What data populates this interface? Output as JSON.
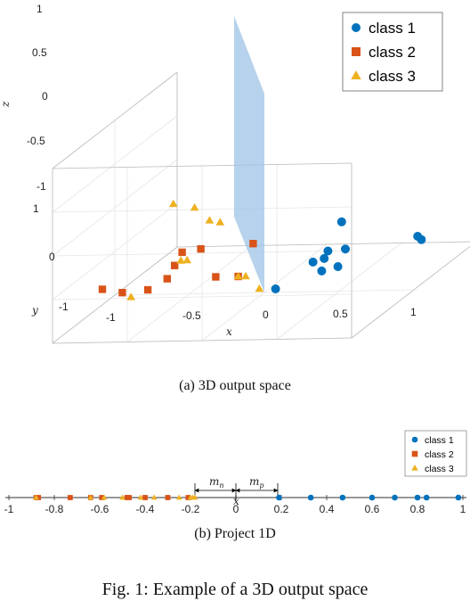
{
  "chart_data": [
    {
      "type": "scatter",
      "subtype": "3d",
      "xlabel": "x",
      "ylabel": "y",
      "zlabel": "z",
      "xticks": [
        "-1",
        "-0.5",
        "0",
        "0.5",
        "1"
      ],
      "yticks": [
        "-1",
        "0",
        "1"
      ],
      "zticks": [
        "-1",
        "-0.5",
        "0",
        "0.5",
        "1"
      ],
      "xlim": [
        -1,
        1
      ],
      "ylim": [
        -1,
        1
      ],
      "zlim": [
        -1,
        1
      ],
      "legend_position": "top-right",
      "series": [
        {
          "name": "class 1",
          "marker": "circle",
          "color": "#0072BD",
          "points": [
            [
              0.2,
              0.3,
              -0.8
            ],
            [
              0.45,
              0.3,
              -0.5
            ],
            [
              0.55,
              0.4,
              -0.55
            ],
            [
              0.7,
              0.5,
              -0.45
            ],
            [
              0.6,
              0.2,
              -0.1
            ],
            [
              0.75,
              0.5,
              -0.25
            ],
            [
              0.3,
              -0.3,
              -0.7
            ],
            [
              0.9,
              -0.3,
              -0.55
            ],
            [
              0.8,
              -0.6,
              -0.75
            ],
            [
              0.65,
              0.6,
              -0.3
            ]
          ]
        },
        {
          "name": "class 2",
          "marker": "square",
          "color": "#D95319",
          "points": [
            [
              -0.75,
              0.8,
              -0.5
            ],
            [
              -0.7,
              0.6,
              -0.65
            ],
            [
              -0.55,
              0.55,
              -0.65
            ],
            [
              -0.35,
              0.6,
              -0.35
            ],
            [
              -0.4,
              0.6,
              -0.5
            ],
            [
              -0.2,
              0.3,
              -0.65
            ],
            [
              -0.05,
              0.3,
              -0.65
            ],
            [
              -0.55,
              -0.3,
              -0.65
            ],
            [
              -0.2,
              -0.3,
              -0.6
            ],
            [
              -0.3,
              0.6,
              -0.2
            ]
          ]
        },
        {
          "name": "class 3",
          "marker": "triangle",
          "color": "#EDB120",
          "points": [
            [
              -0.4,
              0.5,
              0.3
            ],
            [
              -0.3,
              0.4,
              0.2
            ],
            [
              -0.2,
              0.4,
              0.05
            ],
            [
              -0.15,
              0.35,
              0.0
            ],
            [
              -0.35,
              0.5,
              -0.35
            ],
            [
              -0.35,
              0.4,
              -0.4
            ],
            [
              -0.6,
              0.7,
              -0.65
            ],
            [
              -0.05,
              0.3,
              -0.65
            ],
            [
              0.0,
              0.3,
              -0.65
            ],
            [
              0.05,
              0.2,
              -0.85
            ]
          ]
        }
      ]
    },
    {
      "type": "scatter",
      "subtype": "1d",
      "xlabel": "x",
      "xlim": [
        -1,
        1
      ],
      "xticks": [
        "-1",
        "-0.8",
        "-0.6",
        "-0.4",
        "-0.2",
        "0",
        "0.2",
        "0.4",
        "0.6",
        "0.8",
        "1"
      ],
      "legend_position": "top-right",
      "annotations": [
        {
          "label": "m_n",
          "from": -0.18,
          "to": 0
        },
        {
          "label": "m_p",
          "from": 0,
          "to": 0.18
        }
      ],
      "series": [
        {
          "name": "class 1",
          "marker": "circle",
          "color": "#0072BD",
          "values": [
            0.19,
            0.33,
            0.47,
            0.6,
            0.7,
            0.8,
            0.84,
            0.98
          ]
        },
        {
          "name": "class 2",
          "marker": "square",
          "color": "#D95319",
          "values": [
            -0.88,
            -0.87,
            -0.73,
            -0.64,
            -0.59,
            -0.48,
            -0.47,
            -0.4,
            -0.3,
            -0.21
          ]
        },
        {
          "name": "class 3",
          "marker": "triangle",
          "color": "#EDB120",
          "values": [
            -0.88,
            -0.64,
            -0.58,
            -0.5,
            -0.42,
            -0.36,
            -0.25,
            -0.2,
            -0.19,
            -0.18
          ]
        }
      ]
    }
  ],
  "captions": {
    "a": "(a) 3D output space",
    "b": "(b) Project 1D",
    "fig": "Fig. 1: Example of a 3D output space"
  },
  "annot": {
    "mn": "m",
    "mn_sub": "n",
    "mp": "m",
    "mp_sub": "p"
  }
}
